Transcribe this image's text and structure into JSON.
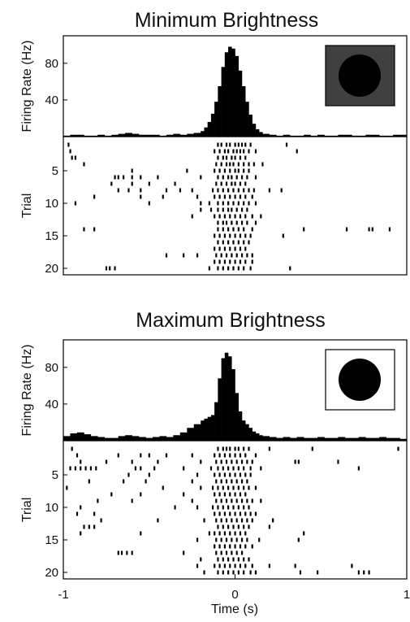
{
  "chart_data": {
    "type": "bar",
    "panels": [
      {
        "title": "Minimum Brightness",
        "inset": {
          "background": "#404040",
          "circle": "#000000"
        },
        "histogram": {
          "ylabel": "Firing Rate (Hz)",
          "yticks": [
            40,
            80
          ],
          "ylim": [
            0,
            110
          ],
          "xlim": [
            -1,
            1
          ],
          "x": [
            -1.0,
            -0.96,
            -0.92,
            -0.88,
            -0.84,
            -0.8,
            -0.76,
            -0.72,
            -0.68,
            -0.64,
            -0.6,
            -0.56,
            -0.52,
            -0.48,
            -0.44,
            -0.4,
            -0.36,
            -0.32,
            -0.28,
            -0.24,
            -0.2,
            -0.18,
            -0.16,
            -0.14,
            -0.12,
            -0.1,
            -0.08,
            -0.06,
            -0.04,
            -0.02,
            0.0,
            0.02,
            0.04,
            0.06,
            0.08,
            0.1,
            0.12,
            0.14,
            0.16,
            0.2,
            0.24,
            0.28,
            0.32,
            0.36,
            0.4,
            0.44,
            0.48,
            0.52,
            0.56,
            0.6,
            0.64,
            0.68,
            0.72,
            0.76,
            0.8,
            0.84,
            0.88,
            0.92,
            0.96
          ],
          "values": [
            1,
            2,
            2,
            1,
            1,
            2,
            1,
            2,
            3,
            4,
            3,
            2,
            2,
            2,
            1,
            2,
            3,
            2,
            3,
            4,
            6,
            10,
            16,
            25,
            38,
            55,
            76,
            92,
            98,
            96,
            88,
            72,
            55,
            38,
            24,
            14,
            8,
            5,
            3,
            2,
            1,
            2,
            1,
            1,
            2,
            1,
            2,
            1,
            1,
            2,
            2,
            1,
            1,
            2,
            2,
            1,
            1,
            2,
            2
          ]
        },
        "raster": {
          "ylabel": "Trial",
          "yticks": [
            5,
            10,
            15,
            20
          ],
          "trials": [
            [
              -0.97,
              -0.1,
              -0.08,
              -0.05,
              -0.03,
              0.0,
              0.02,
              0.04,
              0.06,
              0.09,
              0.3
            ],
            [
              -0.96,
              -0.12,
              -0.09,
              -0.06,
              -0.04,
              -0.01,
              0.01,
              0.03,
              0.05,
              0.08,
              0.12,
              0.36
            ],
            [
              -0.95,
              -0.93,
              -0.1,
              -0.07,
              -0.05,
              -0.02,
              0.0,
              0.03,
              0.06
            ],
            [
              -0.88,
              -0.11,
              -0.08,
              -0.05,
              -0.03,
              -0.01,
              0.02,
              0.05,
              0.08,
              0.11,
              0.16
            ],
            [
              -0.6,
              -0.28,
              -0.12,
              -0.09,
              -0.06,
              -0.03,
              0.0,
              0.02,
              0.05,
              0.08
            ],
            [
              -0.7,
              -0.68,
              -0.65,
              -0.6,
              -0.55,
              -0.45,
              -0.2,
              -0.1,
              -0.07,
              -0.04,
              -0.02,
              0.01,
              0.04,
              0.07,
              0.12
            ],
            [
              -0.72,
              -0.6,
              -0.5,
              -0.35,
              -0.11,
              -0.08,
              -0.05,
              -0.02,
              0.0,
              0.03,
              0.06
            ],
            [
              -0.68,
              -0.62,
              -0.55,
              -0.4,
              -0.32,
              -0.25,
              -0.13,
              -0.1,
              -0.07,
              -0.04,
              -0.01,
              0.02,
              0.05,
              0.08,
              0.11,
              0.2,
              0.27
            ],
            [
              -0.82,
              -0.55,
              -0.42,
              -0.22,
              -0.12,
              -0.09,
              -0.06,
              -0.03,
              0.0,
              0.03,
              0.06,
              0.1
            ],
            [
              -0.93,
              -0.5,
              -0.2,
              -0.15,
              -0.1,
              -0.07,
              -0.04,
              -0.01,
              0.02,
              0.05,
              0.08,
              0.12
            ],
            [
              -0.2,
              -0.14,
              -0.1,
              -0.07,
              -0.04,
              -0.02,
              0.01,
              0.04,
              0.07
            ],
            [
              -0.25,
              -0.12,
              -0.09,
              -0.06,
              -0.03,
              0.0,
              0.03,
              0.06,
              0.1,
              0.15
            ],
            [
              -0.1,
              -0.07,
              -0.05,
              -0.02,
              0.01,
              0.04,
              0.07,
              0.12
            ],
            [
              -0.88,
              -0.82,
              -0.1,
              -0.07,
              -0.04,
              -0.01,
              0.02,
              0.05,
              0.1,
              0.4,
              0.65,
              0.78,
              0.8,
              0.9
            ],
            [
              -0.12,
              -0.09,
              -0.06,
              -0.03,
              0.0,
              0.03,
              0.06,
              0.09,
              0.28
            ],
            [
              -0.1,
              -0.07,
              -0.04,
              -0.01,
              0.02,
              0.05,
              0.08
            ],
            [
              -0.12,
              -0.09,
              -0.06,
              -0.03,
              0.0,
              0.03,
              0.06
            ],
            [
              -0.4,
              -0.3,
              -0.22,
              -0.11,
              -0.08,
              -0.05,
              -0.02,
              0.01,
              0.04,
              0.07,
              0.1
            ],
            [
              -0.12,
              -0.09,
              -0.06,
              -0.03,
              0.0,
              0.03,
              0.06,
              0.1
            ],
            [
              -0.75,
              -0.73,
              -0.7,
              -0.15,
              -0.1,
              -0.07,
              -0.04,
              -0.01,
              0.02,
              0.05,
              0.09,
              0.32
            ]
          ]
        }
      },
      {
        "title": "Maximum Brightness",
        "inset": {
          "background": "#ffffff",
          "circle": "#000000"
        },
        "histogram": {
          "ylabel": "Firing Rate (Hz)",
          "yticks": [
            40,
            80
          ],
          "ylim": [
            0,
            110
          ],
          "xlim": [
            -1,
            1
          ],
          "x": [
            -1.0,
            -0.96,
            -0.92,
            -0.88,
            -0.84,
            -0.8,
            -0.76,
            -0.72,
            -0.68,
            -0.64,
            -0.6,
            -0.56,
            -0.52,
            -0.48,
            -0.44,
            -0.4,
            -0.36,
            -0.32,
            -0.28,
            -0.24,
            -0.2,
            -0.18,
            -0.16,
            -0.14,
            -0.12,
            -0.1,
            -0.08,
            -0.06,
            -0.04,
            -0.02,
            0.0,
            0.02,
            0.04,
            0.06,
            0.08,
            0.1,
            0.12,
            0.14,
            0.16,
            0.2,
            0.24,
            0.28,
            0.32,
            0.36,
            0.4,
            0.44,
            0.48,
            0.52,
            0.56,
            0.6,
            0.64,
            0.68,
            0.72,
            0.76,
            0.8,
            0.84,
            0.88,
            0.92,
            0.96
          ],
          "values": [
            5,
            8,
            9,
            7,
            5,
            4,
            3,
            3,
            5,
            6,
            5,
            4,
            3,
            4,
            5,
            4,
            6,
            9,
            14,
            18,
            22,
            24,
            26,
            28,
            42,
            68,
            90,
            96,
            92,
            78,
            52,
            32,
            22,
            18,
            14,
            10,
            8,
            6,
            5,
            4,
            3,
            4,
            3,
            4,
            3,
            3,
            4,
            3,
            3,
            4,
            3,
            3,
            4,
            3,
            3,
            4,
            3,
            3,
            2
          ]
        },
        "raster": {
          "ylabel": "Trial",
          "yticks": [
            5,
            10,
            15,
            20
          ],
          "trials": [
            [
              -0.95,
              -0.1,
              -0.07,
              -0.05,
              -0.03,
              0.0,
              0.02,
              0.05,
              0.08,
              0.2,
              0.45,
              0.95
            ],
            [
              -0.92,
              -0.68,
              -0.55,
              -0.5,
              -0.4,
              -0.25,
              -0.12,
              -0.09,
              -0.06,
              -0.03,
              0.0,
              0.03,
              0.06,
              0.12
            ],
            [
              -0.9,
              -0.75,
              -0.6,
              -0.45,
              -0.2,
              -0.11,
              -0.08,
              -0.05,
              -0.02,
              0.01,
              0.04,
              0.07,
              0.1,
              0.35,
              0.37,
              0.6
            ],
            [
              -0.96,
              -0.93,
              -0.9,
              -0.87,
              -0.84,
              -0.81,
              -0.58,
              -0.55,
              -0.47,
              -0.3,
              -0.14,
              -0.1,
              -0.07,
              -0.04,
              -0.01,
              0.02,
              0.05,
              0.09,
              0.15,
              0.72
            ],
            [
              -0.62,
              -0.5,
              -0.22,
              -0.12,
              -0.09,
              -0.06,
              -0.03,
              0.0,
              0.03,
              0.06,
              0.09
            ],
            [
              -0.85,
              -0.65,
              -0.52,
              -0.25,
              -0.11,
              -0.08,
              -0.05,
              -0.02,
              0.01,
              0.04,
              0.07
            ],
            [
              -0.98,
              -0.42,
              -0.2,
              -0.13,
              -0.1,
              -0.07,
              -0.04,
              -0.01,
              0.02,
              0.05,
              0.08,
              0.12
            ],
            [
              -0.72,
              -0.55,
              -0.3,
              -0.12,
              -0.09,
              -0.06,
              -0.03,
              0.0,
              0.03,
              0.06
            ],
            [
              -0.8,
              -0.6,
              -0.25,
              -0.11,
              -0.08,
              -0.05,
              -0.02,
              0.01,
              0.04,
              0.07,
              0.1,
              0.15
            ],
            [
              -0.9,
              -0.35,
              -0.22,
              -0.13,
              -0.1,
              -0.07,
              -0.04,
              -0.01,
              0.02,
              0.05,
              0.08
            ],
            [
              -0.92,
              -0.82,
              -0.12,
              -0.09,
              -0.06,
              -0.03,
              0.0,
              0.03,
              0.06,
              0.09,
              0.12
            ],
            [
              -0.78,
              -0.45,
              -0.18,
              -0.11,
              -0.08,
              -0.05,
              -0.02,
              0.01,
              0.04,
              0.07,
              0.1,
              0.22
            ],
            [
              -0.88,
              -0.85,
              -0.82,
              -0.1,
              -0.07,
              -0.04,
              -0.01,
              0.02,
              0.05,
              0.08,
              0.2
            ],
            [
              -0.9,
              -0.55,
              -0.15,
              -0.12,
              -0.09,
              -0.06,
              -0.03,
              0.0,
              0.03,
              0.06,
              0.4
            ],
            [
              -0.22,
              -0.11,
              -0.08,
              -0.05,
              -0.02,
              0.01,
              0.04,
              0.07,
              0.14,
              0.37
            ],
            [
              -0.12,
              -0.09,
              -0.06,
              -0.03,
              0.0,
              0.03,
              0.06,
              0.1
            ],
            [
              -0.68,
              -0.66,
              -0.63,
              -0.6,
              -0.3,
              -0.11,
              -0.08,
              -0.05,
              -0.02,
              0.01,
              0.04
            ],
            [
              -0.2,
              -0.1,
              -0.07,
              -0.04,
              -0.01,
              0.02,
              0.05,
              0.08
            ],
            [
              -0.22,
              -0.12,
              -0.09,
              -0.06,
              -0.03,
              0.0,
              0.03,
              0.06,
              0.1,
              0.2,
              0.35,
              0.68
            ],
            [
              -0.18,
              -0.1,
              -0.07,
              -0.04,
              -0.01,
              0.02,
              0.05,
              0.09,
              0.12,
              0.38,
              0.48,
              0.72,
              0.75,
              0.78
            ]
          ]
        }
      }
    ],
    "xaxis": {
      "label": "Time (s)",
      "ticks": [
        -1,
        0,
        1
      ],
      "tick_labels": [
        "-1",
        "0",
        "1"
      ],
      "range": [
        -1,
        1
      ]
    }
  }
}
